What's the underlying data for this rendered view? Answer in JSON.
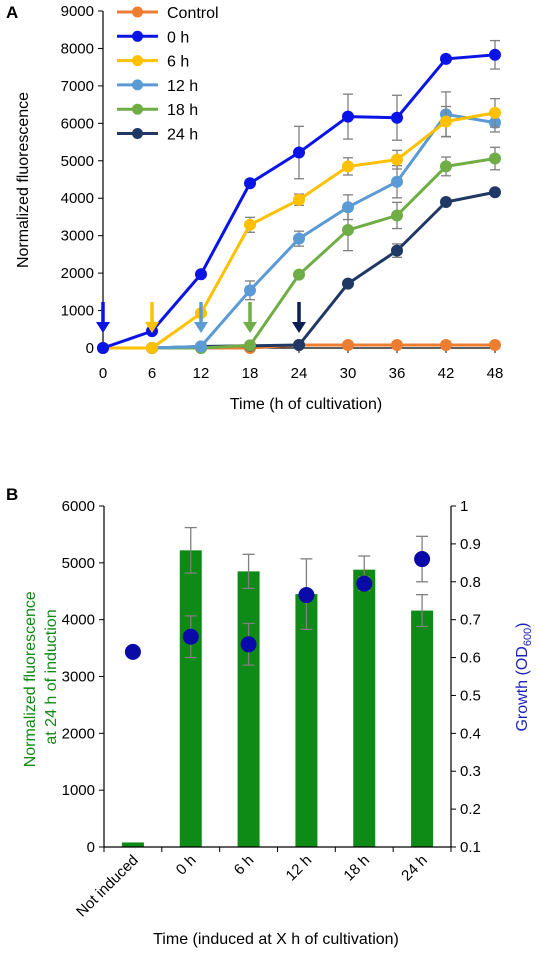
{
  "chart_data": [
    {
      "type": "line",
      "panel_label": "A",
      "xlabel": "Time (h of cultivation)",
      "ylabel": "Normalized fluorescence",
      "x": [
        0,
        6,
        12,
        18,
        24,
        30,
        36,
        42,
        48
      ],
      "xticks": [
        "0",
        "6",
        "12",
        "18",
        "24",
        "30",
        "36",
        "42",
        "48"
      ],
      "xlim": [
        0,
        48
      ],
      "ylim": [
        0,
        9000
      ],
      "yticks": [
        "0",
        "1000",
        "2000",
        "3000",
        "4000",
        "5000",
        "6000",
        "7000",
        "8000",
        "9000"
      ],
      "grid": false,
      "legend": "top-left",
      "series": [
        {
          "name": "Control",
          "color": "#ED7D31",
          "values": [
            0,
            0,
            0,
            0,
            80,
            80,
            80,
            80,
            80
          ],
          "errors": [
            0,
            0,
            0,
            0,
            0,
            0,
            0,
            0,
            0
          ]
        },
        {
          "name": "0 h",
          "color": "#0A14E6",
          "values": [
            0,
            450,
            1970,
            4400,
            5220,
            6180,
            6150,
            7720,
            7830
          ],
          "errors": [
            0,
            0,
            0,
            0,
            700,
            600,
            600,
            0,
            380
          ]
        },
        {
          "name": "6 h",
          "color": "#FFC000",
          "values": [
            0,
            0,
            930,
            3290,
            3960,
            4850,
            5030,
            6050,
            6280
          ],
          "errors": [
            0,
            0,
            0,
            200,
            150,
            230,
            250,
            400,
            380
          ]
        },
        {
          "name": "12 h",
          "color": "#5B9BD5",
          "values": [
            0,
            0,
            40,
            1540,
            2920,
            3760,
            4440,
            6240,
            6020
          ],
          "errors": [
            0,
            0,
            0,
            250,
            200,
            330,
            430,
            600,
            250
          ]
        },
        {
          "name": "18 h",
          "color": "#70AD47",
          "values": [
            0,
            0,
            0,
            70,
            1960,
            3150,
            3540,
            4850,
            5060
          ],
          "errors": [
            0,
            0,
            0,
            0,
            0,
            550,
            350,
            250,
            300
          ]
        },
        {
          "name": "24 h",
          "color": "#1F3864",
          "values": [
            0,
            0,
            40,
            60,
            80,
            1720,
            2600,
            3900,
            4160
          ],
          "errors": [
            0,
            0,
            0,
            0,
            0,
            0,
            180,
            0,
            0
          ]
        }
      ],
      "induction_arrows": [
        {
          "x": 0,
          "color": "#0A14E6"
        },
        {
          "x": 6,
          "color": "#FFC000"
        },
        {
          "x": 12,
          "color": "#5B9BD5"
        },
        {
          "x": 18,
          "color": "#70AD47"
        },
        {
          "x": 24,
          "color": "#0B1F52"
        }
      ]
    },
    {
      "type": "bar",
      "panel_label": "B",
      "xlabel": "Time (induced at X h of cultivation)",
      "ylabel_lines": [
        "Normalized fluorescence",
        "at 24 h of induction"
      ],
      "y2label": "Growth (OD",
      "y2label_sub": "600",
      "y2label_end": ")",
      "categories": [
        "Not induced",
        "0 h",
        "6 h",
        "12 h",
        "18 h",
        "24 h"
      ],
      "ylim": [
        0,
        6000
      ],
      "yticks": [
        "0",
        "1000",
        "2000",
        "3000",
        "4000",
        "5000",
        "6000"
      ],
      "y2lim": [
        0.1,
        1.0
      ],
      "y2ticks": [
        "0.1",
        "0.2",
        "0.3",
        "0.4",
        "0.5",
        "0.6",
        "0.7",
        "0.8",
        "0.9",
        "1"
      ],
      "grid": false,
      "series": [
        {
          "name": "Normalized fluorescence",
          "color": "#0E8A16",
          "axis": "left",
          "values": [
            80,
            5220,
            4850,
            4450,
            4880,
            4160
          ],
          "errors": [
            0,
            400,
            300,
            620,
            240,
            280
          ]
        },
        {
          "name": "Growth (OD600)",
          "color": "#0A0AA8",
          "axis": "right",
          "kind": "scatter",
          "values": [
            0.615,
            0.655,
            0.635,
            0.765,
            0.795,
            0.86
          ],
          "errors": [
            0,
            0.055,
            0.055,
            0,
            0.018,
            0.06
          ]
        }
      ]
    }
  ]
}
